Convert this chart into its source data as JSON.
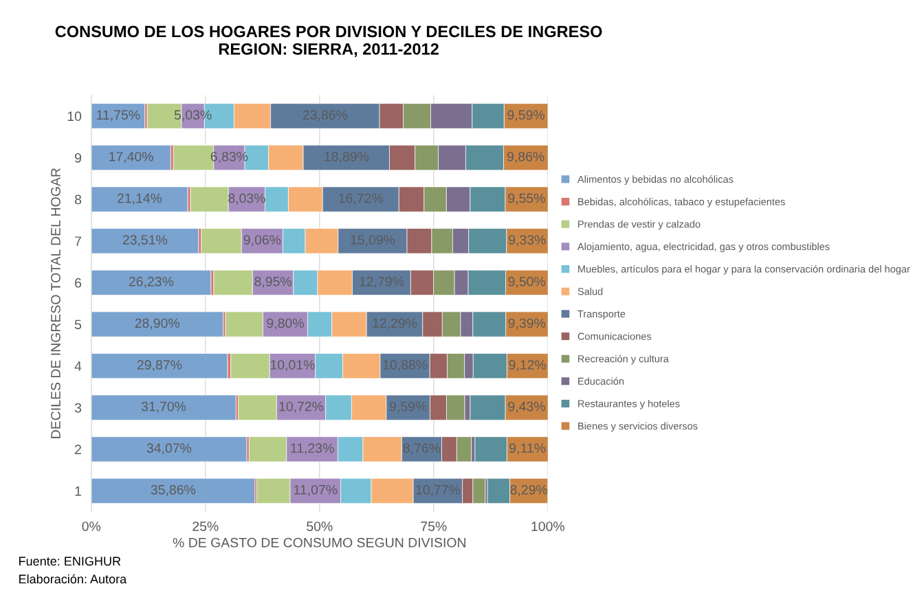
{
  "chart_data": {
    "type": "bar",
    "orientation": "horizontal",
    "stacked": true,
    "title": "CONSUMO DE LOS HOGARES POR DIVISION Y DECILES DE INGRESO\nREGION: SIERRA, 2011-2012",
    "xlabel": "% DE GASTO DE CONSUMO SEGUN DIVISION",
    "ylabel": "DECILES DE INGRESO TOTAL DEL HOGAR",
    "categories": [
      "10",
      "9",
      "8",
      "7",
      "6",
      "5",
      "4",
      "3",
      "2",
      "1"
    ],
    "xlim": [
      0,
      100
    ],
    "xticks": [
      {
        "value": 0,
        "label": "0%"
      },
      {
        "value": 25,
        "label": "25%"
      },
      {
        "value": 50,
        "label": "50%"
      },
      {
        "value": 75,
        "label": "75%"
      },
      {
        "value": 100,
        "label": "100%"
      }
    ],
    "grid": "x",
    "legend": "right",
    "annotations": [
      "Fuente: ENIGHUR",
      "Elaboración: Autora"
    ],
    "series": [
      {
        "name": "Alimentos y bebidas no alcohólicas",
        "color": "#7ba3d0",
        "values": [
          11.75,
          17.4,
          21.14,
          23.51,
          26.23,
          28.9,
          29.87,
          31.7,
          34.07,
          35.86
        ],
        "value_labels": [
          "11,75%",
          "17,40%",
          "21,14%",
          "23,51%",
          "26,23%",
          "28,90%",
          "29,87%",
          "31,70%",
          "34,07%",
          "35,86%"
        ]
      },
      {
        "name": "Bebidas, alcohólicas, tabaco y estupefacientes",
        "color": "#d9746f",
        "values": [
          0.5,
          0.6,
          0.6,
          0.6,
          0.6,
          0.5,
          0.7,
          0.5,
          0.5,
          0.4
        ]
      },
      {
        "name": "Prendas de vestir y calzado",
        "color": "#b7ce87",
        "values": [
          7.5,
          8.8,
          8.3,
          8.8,
          8.5,
          8.2,
          8.5,
          8.4,
          8.2,
          7.3
        ]
      },
      {
        "name": "Alojamiento, agua, electricidad, gas y otros combustibles",
        "color": "#a48cbf",
        "values": [
          5.03,
          6.83,
          8.03,
          9.06,
          8.95,
          9.8,
          10.01,
          10.72,
          11.23,
          11.07
        ],
        "value_labels": [
          "5,03%",
          "6,83%",
          "8,03%",
          "9,06%",
          "8,95%",
          "9,80%",
          "10,01%",
          "10,72%",
          "11,23%",
          "11,07%"
        ]
      },
      {
        "name": "Muebles, artículos para el hogar y para la conservación ordinaria del hogar",
        "color": "#77c2d7",
        "values": [
          6.5,
          5.2,
          5.1,
          4.9,
          5.3,
          5.3,
          6.0,
          5.7,
          5.5,
          6.7
        ]
      },
      {
        "name": "Salud",
        "color": "#f7b074",
        "values": [
          8.0,
          7.6,
          7.5,
          7.2,
          7.6,
          7.6,
          8.2,
          7.6,
          8.5,
          9.2
        ]
      },
      {
        "name": "Transporte",
        "color": "#5f7b9c",
        "values": [
          23.86,
          18.89,
          16.72,
          15.09,
          12.79,
          12.29,
          10.88,
          9.59,
          8.76,
          10.77
        ],
        "value_labels": [
          "23,86%",
          "18,89%",
          "16,72%",
          "15,09%",
          "12,79%",
          "12,29%",
          "10,88%",
          "9,59%",
          "8,76%",
          "10,77%"
        ]
      },
      {
        "name": "Comunicaciones",
        "color": "#9b6460",
        "values": [
          5.2,
          5.6,
          5.5,
          5.4,
          5.0,
          4.3,
          3.8,
          3.6,
          3.3,
          2.3
        ]
      },
      {
        "name": "Recreación y cultura",
        "color": "#889a65",
        "values": [
          6.0,
          5.1,
          4.9,
          4.6,
          4.6,
          4.0,
          3.8,
          4.0,
          3.2,
          2.7
        ]
      },
      {
        "name": "Educación",
        "color": "#7b6f8f",
        "values": [
          9.1,
          6.0,
          5.2,
          3.5,
          3.0,
          2.7,
          1.9,
          1.2,
          0.8,
          0.5
        ]
      },
      {
        "name": "Restaurantes y hoteles",
        "color": "#5a909c",
        "values": [
          7.0,
          8.3,
          7.7,
          8.3,
          8.2,
          7.2,
          7.4,
          7.7,
          7.0,
          4.9
        ]
      },
      {
        "name": "Bienes y servicios diversos",
        "color": "#ca8544",
        "values": [
          9.59,
          9.86,
          9.55,
          9.33,
          9.5,
          9.39,
          9.12,
          9.43,
          9.11,
          8.29
        ],
        "value_labels": [
          "9,59%",
          "9,86%",
          "9,55%",
          "9,33%",
          "9,50%",
          "9,39%",
          "9,12%",
          "9,43%",
          "9,11%",
          "8,29%"
        ]
      }
    ]
  }
}
